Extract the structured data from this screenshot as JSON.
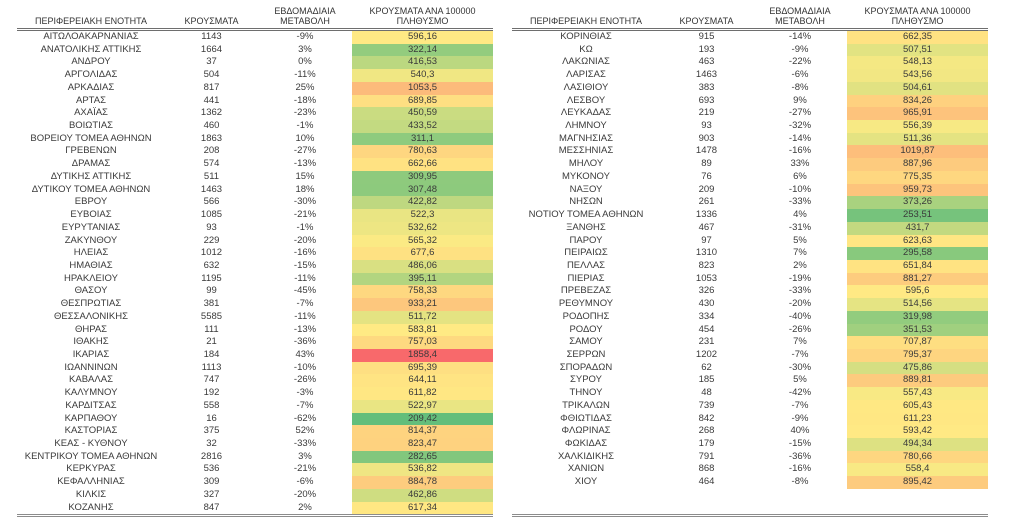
{
  "chart_data": {
    "type": "table",
    "columns": [
      "ΠΕΡΙΦΕΡΕΙΑΚΗ ΕΝΟΤΗΤΑ",
      "ΚΡΟΥΣΜΑΤΑ",
      "ΕΒΔΟΜΑΔΙΑΙΑ ΜΕΤΑΒΟΛΗ",
      "ΚΡΟΥΣΜΑΤΑ ΑΝΑ 100000 ΠΛΗΘΥΣΜΟ"
    ],
    "color_scale": {
      "applies_to_column": "ΚΡΟΥΣΜΑΤΑ ΑΝΑ 100000 ΠΛΗΘΥΣΜΟ",
      "min_color": "#63BE7B",
      "mid_color": "#FFEB84",
      "max_color": "#F8696B",
      "midpoint": "50th percentile"
    },
    "left_table_rows": [
      [
        "ΑΙΤΩΛΟΑΚΑΡΝΑΝΙΑΣ",
        "1143",
        "-9%",
        "596,16"
      ],
      [
        "ΑΝΑΤΟΛΙΚΗΣ ΑΤΤΙΚΗΣ",
        "1664",
        "3%",
        "322,14"
      ],
      [
        "ΑΝΔΡΟΥ",
        "37",
        "0%",
        "416,53"
      ],
      [
        "ΑΡΓΟΛΙΔΑΣ",
        "504",
        "-11%",
        "540,3"
      ],
      [
        "ΑΡΚΑΔΙΑΣ",
        "817",
        "25%",
        "1053,5"
      ],
      [
        "ΑΡΤΑΣ",
        "441",
        "-18%",
        "689,85"
      ],
      [
        "ΑΧΑΪΑΣ",
        "1362",
        "-23%",
        "450,59"
      ],
      [
        "ΒΟΙΩΤΙΑΣ",
        "460",
        "-1%",
        "433,52"
      ],
      [
        "ΒΟΡΕΙΟΥ ΤΟΜΕΑ ΑΘΗΝΩΝ",
        "1863",
        "10%",
        "311,1"
      ],
      [
        "ΓΡΕΒΕΝΩΝ",
        "208",
        "-27%",
        "780,63"
      ],
      [
        "ΔΡΑΜΑΣ",
        "574",
        "-13%",
        "662,66"
      ],
      [
        "ΔΥΤΙΚΗΣ ΑΤΤΙΚΗΣ",
        "511",
        "15%",
        "309,95"
      ],
      [
        "ΔΥΤΙΚΟΥ ΤΟΜΕΑ ΑΘΗΝΩΝ",
        "1463",
        "18%",
        "307,48"
      ],
      [
        "ΕΒΡΟΥ",
        "566",
        "-30%",
        "422,82"
      ],
      [
        "ΕΥΒΟΙΑΣ",
        "1085",
        "-21%",
        "522,3"
      ],
      [
        "ΕΥΡΥΤΑΝΙΑΣ",
        "93",
        "-1%",
        "532,62"
      ],
      [
        "ΖΑΚΥΝΘΟΥ",
        "229",
        "-20%",
        "565,32"
      ],
      [
        "ΗΛΕΙΑΣ",
        "1012",
        "-16%",
        "677,6"
      ],
      [
        "ΗΜΑΘΙΑΣ",
        "632",
        "-15%",
        "486,06"
      ],
      [
        "ΗΡΑΚΛΕΙΟΥ",
        "1195",
        "-11%",
        "395,11"
      ],
      [
        "ΘΑΣΟΥ",
        "99",
        "-45%",
        "758,33"
      ],
      [
        "ΘΕΣΠΡΩΤΙΑΣ",
        "381",
        "-7%",
        "933,21"
      ],
      [
        "ΘΕΣΣΑΛΟΝΙΚΗΣ",
        "5585",
        "-11%",
        "511,72"
      ],
      [
        "ΘΗΡΑΣ",
        "111",
        "-13%",
        "583,81"
      ],
      [
        "ΙΘΑΚΗΣ",
        "21",
        "-36%",
        "757,03"
      ],
      [
        "ΙΚΑΡΙΑΣ",
        "184",
        "43%",
        "1858,4"
      ],
      [
        "ΙΩΑΝΝΙΝΩΝ",
        "1113",
        "-10%",
        "695,39"
      ],
      [
        "ΚΑΒΑΛΑΣ",
        "747",
        "-26%",
        "644,11"
      ],
      [
        "ΚΑΛΥΜΝΟΥ",
        "192",
        "-3%",
        "611,82"
      ],
      [
        "ΚΑΡΔΙΤΣΑΣ",
        "558",
        "-7%",
        "522,97"
      ],
      [
        "ΚΑΡΠΑΘΟΥ",
        "16",
        "-62%",
        "209,42"
      ],
      [
        "ΚΑΣΤΟΡΙΑΣ",
        "375",
        "52%",
        "814,37"
      ],
      [
        "ΚΕΑΣ - ΚΥΘΝΟΥ",
        "32",
        "-33%",
        "823,47"
      ],
      [
        "ΚΕΝΤΡΙΚΟΥ ΤΟΜΕΑ ΑΘΗΝΩΝ",
        "2816",
        "3%",
        "282,65"
      ],
      [
        "ΚΕΡΚΥΡΑΣ",
        "536",
        "-21%",
        "536,82"
      ],
      [
        "ΚΕΦΑΛΛΗΝΙΑΣ",
        "309",
        "-6%",
        "884,78"
      ],
      [
        "ΚΙΛΚΙΣ",
        "327",
        "-20%",
        "462,86"
      ],
      [
        "ΚΟΖΑΝΗΣ",
        "847",
        "2%",
        "617,34"
      ]
    ],
    "right_table_rows": [
      [
        "ΚΟΡΙΝΘΙΑΣ",
        "915",
        "-14%",
        "662,35"
      ],
      [
        "ΚΩ",
        "193",
        "-9%",
        "507,51"
      ],
      [
        "ΛΑΚΩΝΙΑΣ",
        "463",
        "-22%",
        "548,13"
      ],
      [
        "ΛΑΡΙΣΑΣ",
        "1463",
        "-6%",
        "543,56"
      ],
      [
        "ΛΑΣΙΘΙΟΥ",
        "383",
        "-8%",
        "504,61"
      ],
      [
        "ΛΕΣΒΟΥ",
        "693",
        "9%",
        "834,26"
      ],
      [
        "ΛΕΥΚΑΔΑΣ",
        "219",
        "-27%",
        "965,91"
      ],
      [
        "ΛΗΜΝΟΥ",
        "93",
        "-32%",
        "556,39"
      ],
      [
        "ΜΑΓΝΗΣΙΑΣ",
        "903",
        "-14%",
        "511,36"
      ],
      [
        "ΜΕΣΣΗΝΙΑΣ",
        "1478",
        "-16%",
        "1019,87"
      ],
      [
        "ΜΗΛΟΥ",
        "89",
        "33%",
        "887,96"
      ],
      [
        "ΜΥΚΟΝΟΥ",
        "76",
        "6%",
        "775,35"
      ],
      [
        "ΝΑΞΟΥ",
        "209",
        "-10%",
        "959,73"
      ],
      [
        "ΝΗΣΩΝ",
        "261",
        "-33%",
        "373,26"
      ],
      [
        "ΝΟΤΙΟΥ ΤΟΜΕΑ ΑΘΗΝΩΝ",
        "1336",
        "4%",
        "253,51"
      ],
      [
        "ΞΑΝΘΗΣ",
        "467",
        "-31%",
        "431,7"
      ],
      [
        "ΠΑΡΟΥ",
        "97",
        "5%",
        "623,63"
      ],
      [
        "ΠΕΙΡΑΙΩΣ",
        "1310",
        "7%",
        "295,58"
      ],
      [
        "ΠΕΛΛΑΣ",
        "823",
        "2%",
        "651,84"
      ],
      [
        "ΠΙΕΡΙΑΣ",
        "1053",
        "-19%",
        "881,27"
      ],
      [
        "ΠΡΕΒΕΖΑΣ",
        "326",
        "-33%",
        "595,6"
      ],
      [
        "ΡΕΘΥΜΝΟΥ",
        "430",
        "-20%",
        "514,56"
      ],
      [
        "ΡΟΔΟΠΗΣ",
        "334",
        "-40%",
        "319,98"
      ],
      [
        "ΡΟΔΟΥ",
        "454",
        "-26%",
        "351,53"
      ],
      [
        "ΣΑΜΟΥ",
        "231",
        "7%",
        "707,87"
      ],
      [
        "ΣΕΡΡΩΝ",
        "1202",
        "-7%",
        "795,37"
      ],
      [
        "ΣΠΟΡΑΔΩΝ",
        "62",
        "-30%",
        "475,86"
      ],
      [
        "ΣΥΡΟΥ",
        "185",
        "5%",
        "889,81"
      ],
      [
        "ΤΗΝΟΥ",
        "48",
        "-42%",
        "557,43"
      ],
      [
        "ΤΡΙΚΑΛΩΝ",
        "739",
        "-7%",
        "605,43"
      ],
      [
        "ΦΘΙΩΤΙΔΑΣ",
        "842",
        "-9%",
        "611,23"
      ],
      [
        "ΦΛΩΡΙΝΑΣ",
        "268",
        "40%",
        "593,42"
      ],
      [
        "ΦΩΚΙΔΑΣ",
        "179",
        "-15%",
        "494,34"
      ],
      [
        "ΧΑΛΚΙΔΙΚΗΣ",
        "791",
        "-36%",
        "780,66"
      ],
      [
        "ΧΑΝΙΩΝ",
        "868",
        "-16%",
        "558,4"
      ],
      [
        "ΧΙΟΥ",
        "464",
        "-8%",
        "895,42"
      ]
    ]
  }
}
